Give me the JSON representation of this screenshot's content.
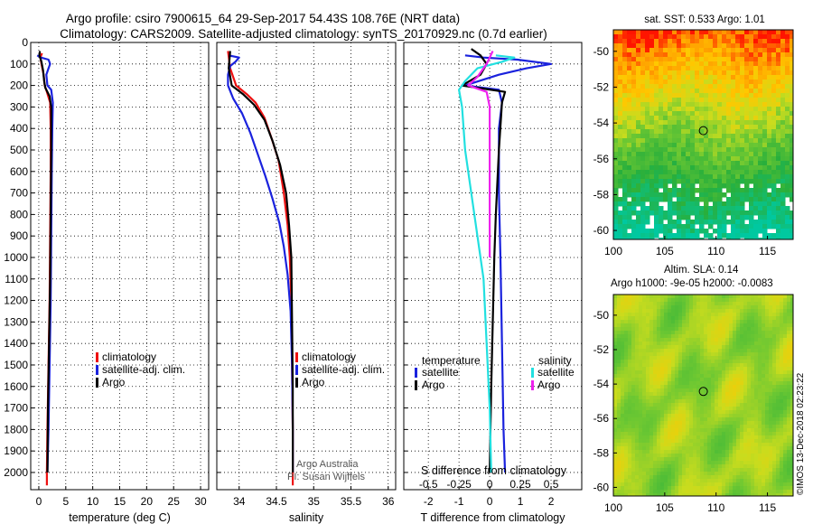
{
  "header": {
    "line1": "Argo profile: csiro 7900615_64 29-Sep-2017 54.43S 108.76E (NRT data)",
    "line2": "Climatology: CARS2009. Satellite-adjusted climatology: synTS_20170929.nc (0.7d earlier)"
  },
  "credits": {
    "line1": "Argo Australia",
    "line2": "PI: Susan Wijffels"
  },
  "imos_stamp": "©IMOS 13-Dec-2018 02:23:22",
  "colors": {
    "climatology": "#ee1111",
    "satellite": "#1a22dd",
    "argo": "#000000",
    "sat_salinity": "#22e0e0",
    "argo_salinity": "#ee22ee"
  },
  "chart_data": [
    {
      "id": "temperature",
      "type": "line",
      "xlabel": "temperature (deg C)",
      "ylabel": "",
      "xlim": [
        -1.5,
        31.5
      ],
      "ylim": [
        2080,
        0
      ],
      "xticks": [
        0,
        5,
        10,
        15,
        20,
        25,
        30
      ],
      "yticks": [
        0,
        100,
        200,
        300,
        400,
        500,
        600,
        700,
        800,
        900,
        1000,
        1100,
        1200,
        1300,
        1400,
        1500,
        1600,
        1700,
        1800,
        1900,
        2000
      ],
      "legend": [
        "climatology",
        "satellite-adj. clim.",
        "Argo"
      ],
      "series": [
        {
          "name": "climatology",
          "color": "#ee1111",
          "points": [
            [
              0.6,
              50
            ],
            [
              0.3,
              70
            ],
            [
              0.5,
              100
            ],
            [
              0.9,
              150
            ],
            [
              1.1,
              200
            ],
            [
              1.5,
              230
            ],
            [
              2.1,
              280
            ],
            [
              2.2,
              400
            ],
            [
              2.2,
              600
            ],
            [
              2.1,
              900
            ],
            [
              2.0,
              1200
            ],
            [
              1.8,
              1500
            ],
            [
              1.6,
              1800
            ],
            [
              1.5,
              2000
            ],
            [
              1.5,
              2060
            ]
          ]
        },
        {
          "name": "satellite-adj. clim.",
          "color": "#1a22dd",
          "points": [
            [
              -0.3,
              60
            ],
            [
              0.4,
              70
            ],
            [
              1.8,
              80
            ],
            [
              2.1,
              100
            ],
            [
              1.8,
              120
            ],
            [
              1.4,
              150
            ],
            [
              1.6,
              200
            ],
            [
              2.3,
              220
            ],
            [
              2.6,
              280
            ],
            [
              2.5,
              400
            ],
            [
              2.4,
              600
            ],
            [
              2.3,
              900
            ],
            [
              2.2,
              1200
            ],
            [
              2.0,
              1500
            ],
            [
              1.8,
              1800
            ],
            [
              1.6,
              2000
            ]
          ]
        },
        {
          "name": "Argo",
          "color": "#000000",
          "points": [
            [
              0.2,
              40
            ],
            [
              0.1,
              60
            ],
            [
              0.5,
              90
            ],
            [
              0.8,
              130
            ],
            [
              1.0,
              180
            ],
            [
              1.2,
              210
            ],
            [
              2.0,
              250
            ],
            [
              2.3,
              300
            ],
            [
              2.3,
              500
            ],
            [
              2.2,
              800
            ],
            [
              2.1,
              1100
            ],
            [
              1.9,
              1400
            ],
            [
              1.7,
              1700
            ],
            [
              1.6,
              2000
            ]
          ]
        }
      ]
    },
    {
      "id": "salinity",
      "type": "line",
      "xlabel": "salinity",
      "ylabel": "",
      "xlim": [
        33.7,
        36.1
      ],
      "ylim": [
        2080,
        0
      ],
      "xticks": [
        34,
        34.5,
        35,
        35.5,
        36
      ],
      "tick_labels": [
        "34",
        "34.5",
        "35",
        "35.5",
        "36"
      ],
      "yticks": [
        0,
        100,
        200,
        300,
        400,
        500,
        600,
        700,
        800,
        900,
        1000,
        1100,
        1200,
        1300,
        1400,
        1500,
        1600,
        1700,
        1800,
        1900,
        2000
      ],
      "legend": [
        "climatology",
        "satellite-adj. clim.",
        "Argo"
      ],
      "series": [
        {
          "name": "climatology",
          "color": "#ee1111",
          "points": [
            [
              33.85,
              40
            ],
            [
              33.88,
              120
            ],
            [
              33.96,
              200
            ],
            [
              34.1,
              240
            ],
            [
              34.22,
              280
            ],
            [
              34.34,
              350
            ],
            [
              34.44,
              450
            ],
            [
              34.53,
              550
            ],
            [
              34.6,
              700
            ],
            [
              34.65,
              850
            ],
            [
              34.68,
              1000
            ],
            [
              34.7,
              1200
            ],
            [
              34.71,
              1500
            ],
            [
              34.72,
              1800
            ],
            [
              34.72,
              2060
            ]
          ]
        },
        {
          "name": "satellite-adj. clim.",
          "color": "#1a22dd",
          "points": [
            [
              33.86,
              60
            ],
            [
              34.0,
              70
            ],
            [
              33.95,
              90
            ],
            [
              33.88,
              110
            ],
            [
              33.85,
              150
            ],
            [
              33.85,
              200
            ],
            [
              33.92,
              260
            ],
            [
              34.04,
              330
            ],
            [
              34.15,
              420
            ],
            [
              34.25,
              520
            ],
            [
              34.35,
              620
            ],
            [
              34.45,
              730
            ],
            [
              34.54,
              840
            ],
            [
              34.6,
              950
            ],
            [
              34.65,
              1080
            ],
            [
              34.69,
              1250
            ],
            [
              34.71,
              1500
            ],
            [
              34.72,
              1800
            ],
            [
              34.72,
              2000
            ]
          ]
        },
        {
          "name": "Argo",
          "color": "#000000",
          "points": [
            [
              33.88,
              40
            ],
            [
              33.86,
              120
            ],
            [
              33.9,
              200
            ],
            [
              34.05,
              240
            ],
            [
              34.2,
              290
            ],
            [
              34.34,
              360
            ],
            [
              34.45,
              460
            ],
            [
              34.55,
              570
            ],
            [
              34.63,
              700
            ],
            [
              34.67,
              850
            ],
            [
              34.7,
              1000
            ],
            [
              34.71,
              1300
            ],
            [
              34.72,
              1600
            ],
            [
              34.72,
              2000
            ]
          ]
        }
      ]
    },
    {
      "id": "difference",
      "type": "line",
      "xlabel": "T difference from climatology",
      "xlabel_top": "S difference from climatology",
      "xlim": [
        -2.8,
        3.0
      ],
      "ylim": [
        2080,
        0
      ],
      "xticks": [
        -2,
        -1,
        0,
        1,
        2
      ],
      "xticks_S": [
        -0.5,
        -0.25,
        0,
        0.25,
        0.5
      ],
      "s_tick_labels": [
        "-0.5",
        "-0.25",
        "0",
        "0.25",
        "0.5"
      ],
      "s_scale": 4,
      "yticks": [
        0,
        100,
        200,
        300,
        400,
        500,
        600,
        700,
        800,
        900,
        1000,
        1100,
        1200,
        1300,
        1400,
        1500,
        1600,
        1700,
        1800,
        1900,
        2000
      ],
      "legend": {
        "temperature_title": "temperature",
        "salinity_title": "salinity",
        "items": [
          "satellite",
          "Argo",
          "satellite",
          "Argo"
        ]
      },
      "series": [
        {
          "name": "T satellite",
          "color": "#1a22dd",
          "points": [
            [
              -0.8,
              60
            ],
            [
              -0.2,
              70
            ],
            [
              0.9,
              80
            ],
            [
              2.0,
              100
            ],
            [
              1.2,
              120
            ],
            [
              0.3,
              150
            ],
            [
              -0.8,
              200
            ],
            [
              0.3,
              220
            ],
            [
              0.4,
              280
            ],
            [
              0.3,
              400
            ],
            [
              0.3,
              700
            ],
            [
              0.35,
              1000
            ],
            [
              0.4,
              1400
            ],
            [
              0.45,
              1800
            ],
            [
              0.5,
              2000
            ]
          ]
        },
        {
          "name": "T Argo",
          "color": "#000000",
          "points": [
            [
              -0.6,
              30
            ],
            [
              -0.3,
              60
            ],
            [
              -0.1,
              100
            ],
            [
              -0.3,
              150
            ],
            [
              -0.9,
              200
            ],
            [
              0.5,
              230
            ],
            [
              0.4,
              280
            ],
            [
              0.3,
              500
            ],
            [
              0.2,
              800
            ],
            [
              0.15,
              1000
            ],
            [
              0.1,
              1300
            ],
            [
              0.05,
              1600
            ],
            [
              0.0,
              2000
            ]
          ]
        },
        {
          "name": "S satellite",
          "color": "#22e0e0",
          "points": [
            [
              0.2,
              60
            ],
            [
              0.8,
              70
            ],
            [
              0.4,
              90
            ],
            [
              -0.4,
              120
            ],
            [
              -0.8,
              180
            ],
            [
              -1.0,
              220
            ],
            [
              -0.9,
              300
            ],
            [
              -0.8,
              500
            ],
            [
              -0.6,
              700
            ],
            [
              -0.4,
              900
            ],
            [
              -0.2,
              1100
            ],
            [
              -0.1,
              1400
            ],
            [
              0.0,
              1700
            ],
            [
              0.05,
              2000
            ]
          ]
        },
        {
          "name": "S Argo",
          "color": "#ee22ee",
          "points": [
            [
              0.1,
              40
            ],
            [
              -0.1,
              100
            ],
            [
              -0.4,
              160
            ],
            [
              -0.7,
              200
            ],
            [
              -0.1,
              230
            ],
            [
              0.0,
              300
            ],
            [
              0.0,
              500
            ],
            [
              0.0,
              800
            ],
            [
              0.0,
              1000
            ]
          ]
        }
      ]
    },
    {
      "id": "sst_map",
      "type": "heatmap",
      "title": "sat. SST: 0.533 Argo: 1.01",
      "xlim": [
        100,
        117.5
      ],
      "ylim": [
        -60.5,
        -48.8
      ],
      "xticks": [
        100,
        105,
        110,
        115
      ],
      "yticks": [
        -50,
        -52,
        -54,
        -56,
        -58,
        -60
      ],
      "marker": [
        108.76,
        -54.43
      ]
    },
    {
      "id": "sla_map",
      "type": "heatmap",
      "title_line1": "Altim. SLA: 0.14",
      "title_line2": "Argo h1000: -9e-05 h2000: -0.0083",
      "xlim": [
        100,
        117.5
      ],
      "ylim": [
        -60.5,
        -48.8
      ],
      "xticks": [
        100,
        105,
        110,
        115
      ],
      "yticks": [
        -50,
        -52,
        -54,
        -56,
        -58,
        -60
      ],
      "marker": [
        108.76,
        -54.43
      ]
    }
  ]
}
